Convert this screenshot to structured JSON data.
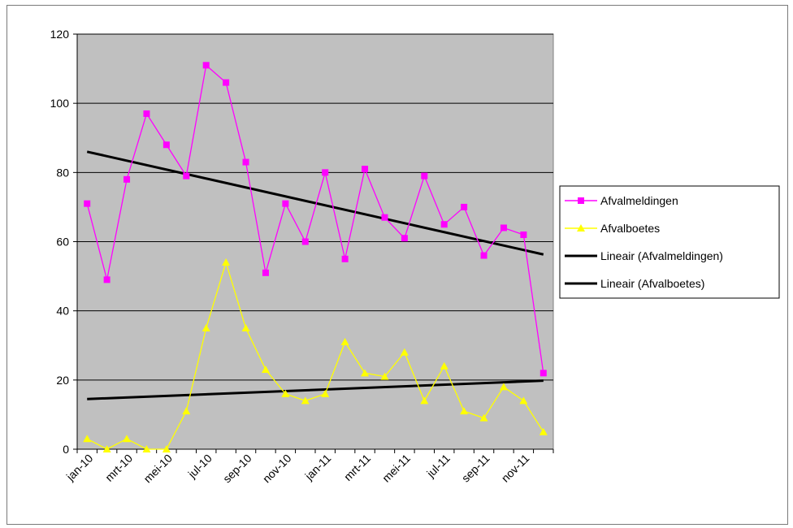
{
  "chart_data": {
    "type": "line",
    "title": "",
    "xlabel": "",
    "ylabel": "",
    "ylim": [
      0,
      120
    ],
    "yticks": [
      "0",
      "20",
      "40",
      "60",
      "80",
      "100",
      "120"
    ],
    "x_tick_labels": [
      "jan-10",
      "mrt-10",
      "mei-10",
      "jul-10",
      "sep-10",
      "nov-10",
      "jan-11",
      "mrt-11",
      "mei-11",
      "jul-11",
      "sep-11",
      "nov-11"
    ],
    "grid": true,
    "legend_position": "right",
    "series": [
      {
        "name": "Afvalmeldingen",
        "color": "#ff00ff",
        "marker": "square",
        "values": [
          71,
          49,
          78,
          97,
          88,
          79,
          111,
          106,
          83,
          51,
          71,
          60,
          80,
          55,
          81,
          67,
          61,
          79,
          65,
          70,
          56,
          64,
          62,
          22
        ]
      },
      {
        "name": "Afvalboetes",
        "color": "#ffff00",
        "marker": "triangle",
        "values": [
          3,
          0,
          3,
          0,
          0,
          11,
          35,
          54,
          35,
          23,
          16,
          14,
          16,
          31,
          22,
          21,
          28,
          14,
          24,
          11,
          9,
          18,
          14,
          5
        ]
      }
    ],
    "trendlines": [
      {
        "name": "Lineair (Afvalmeldingen)",
        "color": "#000000",
        "start": 86,
        "end": 56.3
      },
      {
        "name": "Lineair (Afvalboetes)",
        "color": "#000000",
        "start": 14.5,
        "end": 19.8
      }
    ]
  },
  "legend": {
    "items": [
      {
        "label": "Afvalmeldingen",
        "color": "#ff00ff",
        "marker": "square"
      },
      {
        "label": "Afvalboetes",
        "color": "#ffff00",
        "marker": "triangle"
      },
      {
        "label": "Lineair (Afvalmeldingen)",
        "color": "#000000",
        "marker": "none"
      },
      {
        "label": "Lineair (Afvalboetes)",
        "color": "#000000",
        "marker": "none"
      }
    ]
  },
  "colors": {
    "plot_background": "#c0c0c0",
    "gridline": "#000000"
  }
}
